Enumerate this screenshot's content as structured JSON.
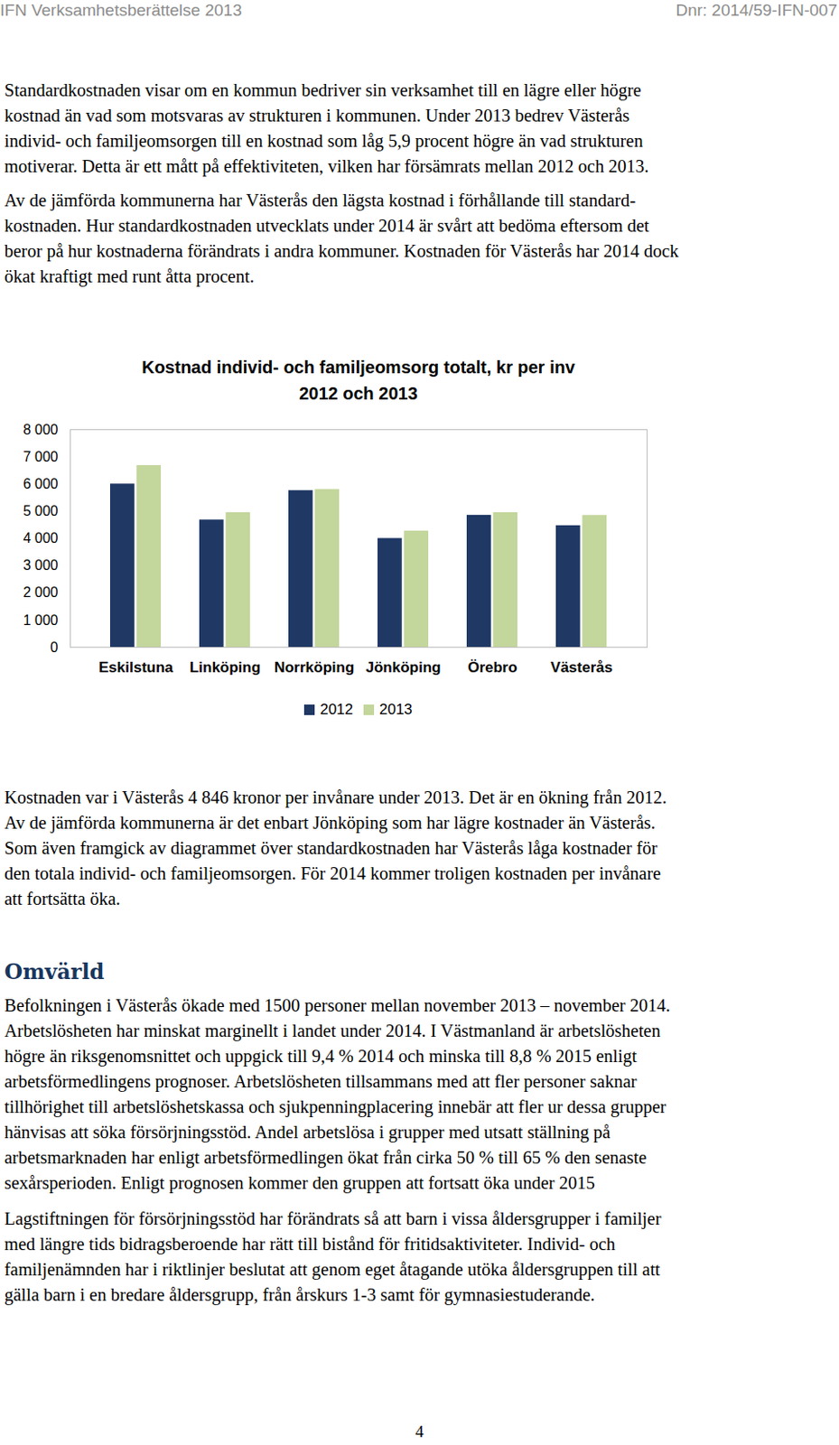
{
  "header": {
    "left": "IFN Verksamhetsberättelse 2013",
    "right": "Dnr: 2014/59-IFN-007"
  },
  "paragraphs_before_chart": [
    [
      "Standardkostnaden visar om en kommun bedriver sin verksamhet till en lägre eller högre",
      "kostnad än vad som motsvaras av strukturen i kommunen. Under 2013 bedrev Västerås",
      "individ- och familjeomsorgen till en kostnad som låg 5,9 procent högre än vad strukturen",
      "motiverar. Detta är ett mått på effektiviteten, vilken har försämrats mellan 2012 och 2013."
    ],
    [
      "Av de jämförda kommunerna har Västerås den lägsta kostnad i förhållande till standard-",
      "kostnaden. Hur standardkostnaden utvecklats under 2014 är svårt att bedöma eftersom det",
      "beror på hur kostnaderna förändrats i andra kommuner. Kostnaden för Västerås har 2014 dock",
      "ökat kraftigt med runt åtta procent."
    ]
  ],
  "chart_data": {
    "type": "bar",
    "title": [
      "Kostnad individ- och familjeomsorg totalt, kr per inv",
      "2012 och 2013"
    ],
    "categories": [
      "Eskilstuna",
      "Linköping",
      "Norrköping",
      "Jönköping",
      "Örebro",
      "Västerås"
    ],
    "series": [
      {
        "name": "2012",
        "color": "#1f3864",
        "values": [
          6000,
          4680,
          5760,
          4000,
          4850,
          4470
        ]
      },
      {
        "name": "2013",
        "color": "#c3d69b",
        "values": [
          6680,
          4950,
          5800,
          4270,
          4950,
          4846
        ]
      }
    ],
    "ylim": [
      0,
      8000
    ],
    "yticks": [
      0,
      {
        "value": 1000,
        "label": "1 000"
      },
      {
        "value": 2000,
        "label": "2 000"
      },
      {
        "value": 3000,
        "label": "3 000"
      },
      {
        "value": 4000,
        "label": "4 000"
      },
      {
        "value": 5000,
        "label": "5 000"
      },
      {
        "value": 6000,
        "label": "6 000"
      },
      {
        "value": 7000,
        "label": "7 000"
      },
      {
        "value": 8000,
        "label": "8 000"
      }
    ],
    "grid": false,
    "legend": "bottom"
  },
  "paragraphs_after_chart": [
    [
      "Kostnaden var i Västerås 4 846 kronor per invånare under 2013. Det är en ökning från 2012.",
      "Av de jämförda kommunerna är det enbart Jönköping som har lägre kostnader än Västerås.",
      "Som även framgick av diagrammet över standardkostnaden har Västerås låga kostnader för",
      "den totala individ- och familjeomsorgen. För 2014 kommer troligen kostnaden per invånare",
      "att fortsätta öka."
    ]
  ],
  "section": {
    "heading": "Omvärld",
    "paragraphs": [
      [
        "Befolkningen i Västerås ökade med 1500 personer mellan november 2013 – november 2014.",
        "Arbetslösheten har minskat marginellt i landet under 2014. I Västmanland är arbetslösheten",
        "högre än riksgenomsnittet och uppgick till 9,4 % 2014 och minska till 8,8 % 2015 enligt",
        "arbetsförmedlingens prognoser. Arbetslösheten tillsammans med att fler personer saknar",
        "tillhörighet till arbetslöshetskassa och sjukpenningplacering innebär att fler ur dessa grupper",
        "hänvisas att söka försörjningsstöd. Andel arbetslösa i grupper med utsatt ställning på",
        "arbetsmarknaden har enligt arbetsförmedlingen ökat från cirka 50 % till 65 % den senaste",
        "sexårsperioden. Enligt prognosen kommer den gruppen att fortsatt öka under 2015"
      ],
      [
        "Lagstiftningen för försörjningsstöd har förändrats så att barn i vissa åldersgrupper i familjer",
        "med längre tids bidragsberoende har rätt till bistånd för fritidsaktiviteter. Individ- och",
        "familjenämnden har i riktlinjer beslutat att genom eget åtagande utöka åldersgruppen till att",
        "gälla barn i en bredare åldersgrupp, från årskurs 1-3 samt för gymnasiestuderande."
      ]
    ]
  },
  "page_number": "4"
}
